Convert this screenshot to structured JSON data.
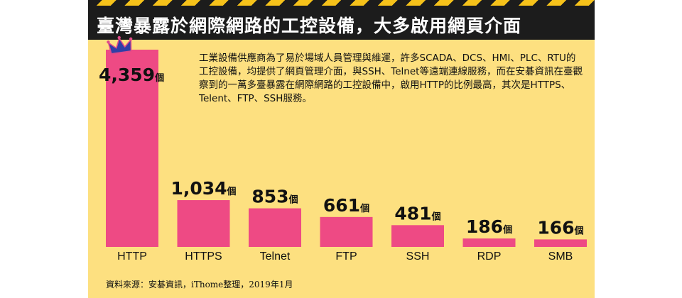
{
  "header": {
    "title": "臺灣暴露於網際網路的工控設備，大多啟用網頁介面"
  },
  "description": "工業設備供應商為了易於場域人員管理與維運，許多SCADA、DCS、HMI、PLC、RTU的工控設備，均提供了網頁管理介面，與SSH、Telnet等遠端連線服務，而在安碁資訊在臺觀察到的一萬多臺暴露在網際網路的工控設備中，啟用HTTP的比例最高，其次是HTTPS、Telent、FTP、SSH服務。",
  "footer": {
    "source": "資料來源：安碁資訊，iThome整理，2019年1月"
  },
  "colors": {
    "background": "#fde080",
    "bar": "#ee4a84",
    "title_bar": "#1c1c1c",
    "crown": "#2f3fa6"
  },
  "icons": {
    "top_bar": "crown-icon"
  },
  "chart_data": {
    "type": "bar",
    "categories": [
      "HTTP",
      "HTTPS",
      "Telnet",
      "FTP",
      "SSH",
      "RDP",
      "SMB"
    ],
    "values": [
      4359,
      1034,
      853,
      661,
      481,
      186,
      166
    ],
    "value_labels": [
      "4,359",
      "1,034",
      "853",
      "661",
      "481",
      "186",
      "166"
    ],
    "unit": "個",
    "ylim": [
      0,
      4359
    ],
    "grid": false
  }
}
